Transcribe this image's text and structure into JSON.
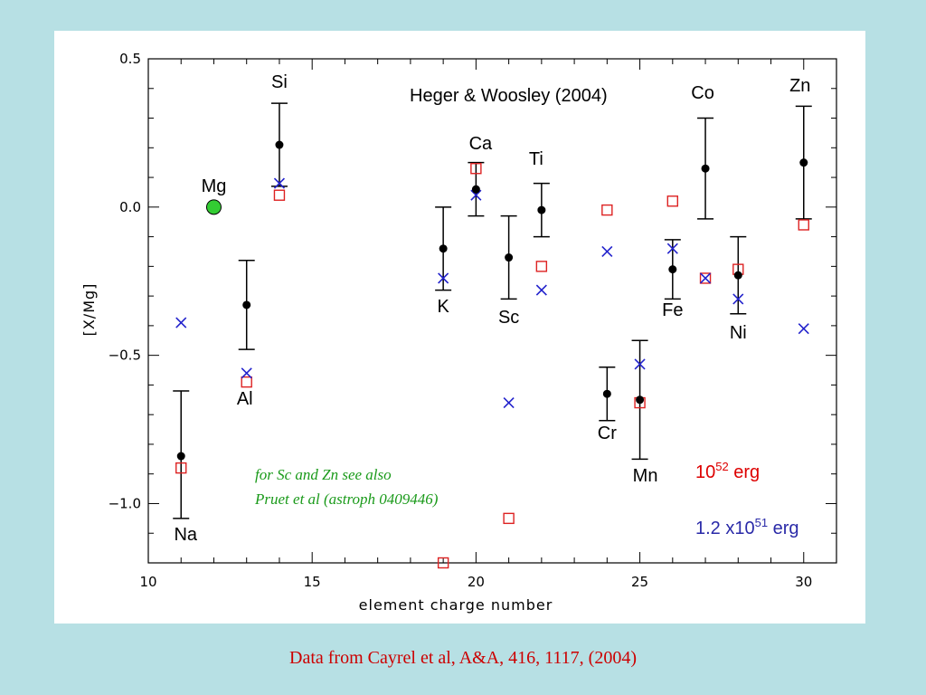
{
  "colors": {
    "background": "#b7e0e4",
    "panel": "#ffffff",
    "observed": "#000000",
    "model_52": "#dd2222",
    "model_51": "#2222cc",
    "mg_marker": "#33cc33",
    "note": "#1a9a1a",
    "caption": "#cc0000"
  },
  "caption": "Data from Cayrel et al, A&A, 416, 1117, (2004)",
  "chart_data": {
    "type": "scatter",
    "title": "Heger & Woosley (2004)",
    "xlabel": "element charge number",
    "ylabel": "[X/Mg]",
    "xlim": [
      10,
      31
    ],
    "ylim": [
      -1.2,
      0.5
    ],
    "xticks_major": [
      "10",
      "15",
      "20",
      "25",
      "30"
    ],
    "yticks_major": [
      "0.5",
      "0.0",
      "−0.5",
      "−1.0"
    ],
    "grid": false,
    "observed": [
      {
        "el": "Na",
        "x": 11,
        "y": -0.84,
        "lo": -1.05,
        "hi": -0.62
      },
      {
        "el": "Al",
        "x": 13,
        "y": -0.33,
        "lo": -0.48,
        "hi": -0.18
      },
      {
        "el": "Si",
        "x": 14,
        "y": 0.21,
        "lo": 0.07,
        "hi": 0.35
      },
      {
        "el": "K",
        "x": 19,
        "y": -0.14,
        "lo": -0.28,
        "hi": 0.0
      },
      {
        "el": "Ca",
        "x": 20,
        "y": 0.06,
        "lo": -0.03,
        "hi": 0.15
      },
      {
        "el": "Sc",
        "x": 21,
        "y": -0.17,
        "lo": -0.31,
        "hi": -0.03
      },
      {
        "el": "Ti",
        "x": 22,
        "y": -0.01,
        "lo": -0.1,
        "hi": 0.08
      },
      {
        "el": "Cr",
        "x": 24,
        "y": -0.63,
        "lo": -0.72,
        "hi": -0.54
      },
      {
        "el": "Mn",
        "x": 25,
        "y": -0.65,
        "lo": -0.85,
        "hi": -0.45
      },
      {
        "el": "Fe",
        "x": 26,
        "y": -0.21,
        "lo": -0.31,
        "hi": -0.11
      },
      {
        "el": "Co",
        "x": 27,
        "y": 0.13,
        "lo": -0.04,
        "hi": 0.3
      },
      {
        "el": "Ni",
        "x": 28,
        "y": -0.23,
        "lo": -0.36,
        "hi": -0.1
      },
      {
        "el": "Zn",
        "x": 30,
        "y": 0.15,
        "lo": -0.04,
        "hi": 0.34
      }
    ],
    "reference": {
      "el": "Mg",
      "x": 12,
      "y": 0.0
    },
    "series": [
      {
        "name": "10^52 erg",
        "marker": "open-square",
        "points": [
          {
            "x": 11,
            "y": -0.88
          },
          {
            "x": 13,
            "y": -0.59
          },
          {
            "x": 14,
            "y": 0.04
          },
          {
            "x": 19,
            "y": -1.2
          },
          {
            "x": 20,
            "y": 0.13
          },
          {
            "x": 21,
            "y": -1.05
          },
          {
            "x": 22,
            "y": -0.2
          },
          {
            "x": 24,
            "y": -0.01
          },
          {
            "x": 25,
            "y": -0.66
          },
          {
            "x": 26,
            "y": 0.02
          },
          {
            "x": 27,
            "y": -0.24
          },
          {
            "x": 28,
            "y": -0.21
          },
          {
            "x": 30,
            "y": -0.06
          }
        ]
      },
      {
        "name": "1.2 x10^51 erg",
        "marker": "cross",
        "points": [
          {
            "x": 11,
            "y": -0.39
          },
          {
            "x": 13,
            "y": -0.56
          },
          {
            "x": 14,
            "y": 0.08
          },
          {
            "x": 19,
            "y": -0.24
          },
          {
            "x": 20,
            "y": 0.04
          },
          {
            "x": 21,
            "y": -0.66
          },
          {
            "x": 22,
            "y": -0.28
          },
          {
            "x": 24,
            "y": -0.15
          },
          {
            "x": 25,
            "y": -0.53
          },
          {
            "x": 26,
            "y": -0.14
          },
          {
            "x": 27,
            "y": -0.24
          },
          {
            "x": 28,
            "y": -0.31
          },
          {
            "x": 30,
            "y": -0.41
          }
        ]
      }
    ],
    "legend": {
      "e52_base": "10",
      "e52_exp": "52",
      "e52_unit": " erg",
      "e51_base": "1.2 x10",
      "e51_exp": "51",
      "e51_unit": " erg"
    },
    "annotations": {
      "note_line1": "for Sc and Zn see also",
      "note_line2": "Pruet et al (astroph 0409446)"
    }
  }
}
